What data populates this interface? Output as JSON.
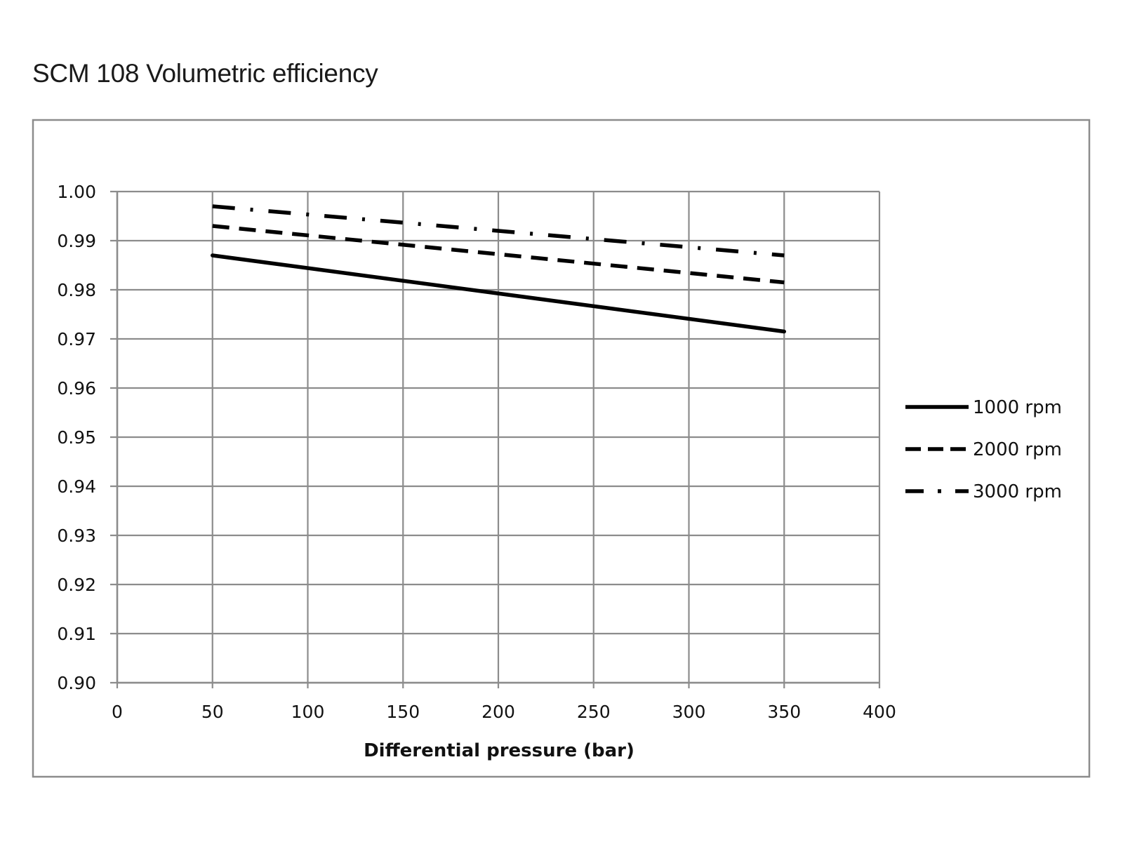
{
  "chart_data": {
    "type": "line",
    "title": "SCM 108 Volumetric efficiency",
    "xlabel": "Differential pressure (bar)",
    "ylabel": "",
    "xlim": [
      0,
      400
    ],
    "ylim": [
      0.9,
      1.0
    ],
    "x_ticks": [
      "0",
      "50",
      "100",
      "150",
      "200",
      "250",
      "300",
      "350",
      "400"
    ],
    "y_ticks": [
      "1.00",
      "0.99",
      "0.98",
      "0.97",
      "0.96",
      "0.95",
      "0.94",
      "0.93",
      "0.92",
      "0.91",
      "0.90"
    ],
    "grid": true,
    "legend_position": "right",
    "series": [
      {
        "name": "1000 rpm",
        "line_style": "solid",
        "color": "#000000",
        "x": [
          50,
          350
        ],
        "y": [
          0.987,
          0.9715
        ]
      },
      {
        "name": "2000 rpm",
        "line_style": "dashed",
        "color": "#000000",
        "x": [
          50,
          350
        ],
        "y": [
          0.993,
          0.9815
        ]
      },
      {
        "name": "3000 rpm",
        "line_style": "dash-dot",
        "color": "#000000",
        "x": [
          50,
          350
        ],
        "y": [
          0.997,
          0.987
        ]
      }
    ]
  }
}
